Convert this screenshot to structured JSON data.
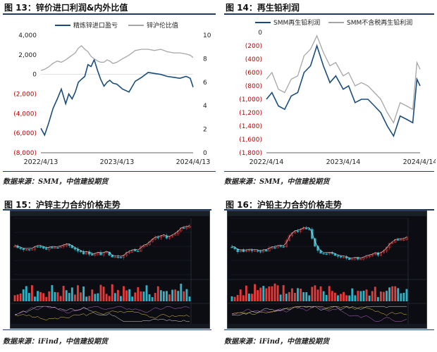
{
  "figures": [
    {
      "title": "图 13：锌价进口利润&内外比值",
      "source": "数据来源：SMM，中信建投期货"
    },
    {
      "title": "图 14：再生铅利润",
      "source": "数据来源：SMM，中信建投期货"
    },
    {
      "title": "图 15：沪锌主力合约价格走势",
      "source": "数据来源：iFind，中信建投期货"
    },
    {
      "title": "图 16：沪铅主力合约价格走势",
      "source": "数据来源：iFind，中信建投期货"
    }
  ],
  "colors": {
    "primary_series": "#1a4d7c",
    "secondary_series": "#a6a6a6",
    "negative_label": "#c00000",
    "rule": "#1f3a64",
    "candle_up": "#e33b3b",
    "candle_down": "#2bb5c7",
    "terminal_bg": "#0b0d12"
  },
  "chart_data": [
    {
      "type": "line",
      "title": "",
      "xlabel": "",
      "ylabel": "",
      "x_ticks": [
        "2022/4/13",
        "2023/4/13",
        "2024/4/13"
      ],
      "x_range": [
        "2022-04-13",
        "2024-04-13"
      ],
      "left_axis": {
        "ylim": [
          -8000,
          4000
        ],
        "ticks": [
          "4,000",
          "2,000",
          "0",
          "(2,000)",
          "(4,000)",
          "(6,000)",
          "(8,000)"
        ]
      },
      "right_axis": {
        "ylim": [
          0,
          10
        ],
        "ticks": [
          "10",
          "8",
          "6",
          "4",
          "2",
          "0"
        ]
      },
      "legend": "top",
      "series": [
        {
          "name": "精炼锌进口盈亏",
          "axis": "left",
          "x": [
            "2022-04-13",
            "2022-05-01",
            "2022-05-20",
            "2022-06-10",
            "2022-07-01",
            "2022-07-20",
            "2022-08-10",
            "2022-08-25",
            "2022-09-10",
            "2022-09-25",
            "2022-10-10",
            "2022-10-25",
            "2022-11-10",
            "2022-11-25",
            "2022-12-10",
            "2022-12-25",
            "2023-01-10",
            "2023-01-25",
            "2023-02-10",
            "2023-02-25",
            "2023-03-10",
            "2023-03-25",
            "2023-04-13",
            "2023-05-10",
            "2023-06-10",
            "2023-07-10",
            "2023-08-10",
            "2023-09-10",
            "2023-10-10",
            "2023-11-10",
            "2023-12-10",
            "2024-01-10",
            "2024-02-10",
            "2024-03-10",
            "2024-03-30",
            "2024-04-13"
          ],
          "values": [
            -5500,
            -6200,
            -5000,
            -3500,
            -2500,
            -1500,
            -3000,
            -2000,
            -2500,
            -1800,
            -800,
            -500,
            -200,
            1000,
            800,
            1500,
            400,
            -500,
            -1200,
            -800,
            -600,
            -900,
            -1000,
            -1500,
            -1800,
            -700,
            -300,
            200,
            100,
            0,
            -200,
            -300,
            -400,
            -200,
            -400,
            -1300
          ]
        },
        {
          "name": "锌沪伦比值",
          "axis": "right",
          "x": [
            "2022-04-13",
            "2022-05-01",
            "2022-05-20",
            "2022-06-10",
            "2022-07-01",
            "2022-07-20",
            "2022-08-10",
            "2022-08-25",
            "2022-09-10",
            "2022-09-25",
            "2022-10-10",
            "2022-10-25",
            "2022-11-10",
            "2022-11-25",
            "2022-12-10",
            "2022-12-25",
            "2023-01-10",
            "2023-01-25",
            "2023-02-10",
            "2023-02-25",
            "2023-03-10",
            "2023-03-25",
            "2023-04-13",
            "2023-05-10",
            "2023-06-10",
            "2023-07-10",
            "2023-08-10",
            "2023-09-10",
            "2023-10-10",
            "2023-11-10",
            "2023-12-10",
            "2024-01-10",
            "2024-02-10",
            "2024-03-10",
            "2024-03-30",
            "2024-04-13"
          ],
          "values": [
            7.0,
            7.1,
            7.3,
            7.6,
            7.8,
            7.7,
            7.9,
            8.1,
            8.3,
            8.5,
            8.9,
            9.1,
            8.8,
            8.6,
            8.2,
            8.0,
            7.8,
            7.7,
            7.7,
            7.9,
            7.8,
            7.6,
            7.7,
            8.0,
            8.3,
            8.7,
            8.8,
            8.8,
            8.7,
            8.8,
            8.6,
            8.5,
            8.5,
            8.4,
            8.3,
            8.1
          ]
        }
      ]
    },
    {
      "type": "line",
      "title": "",
      "xlabel": "",
      "ylabel": "",
      "x_ticks": [
        "2022/4/14",
        "2023/4/14",
        "2024/4/14"
      ],
      "x_range": [
        "2022-04-14",
        "2024-04-14"
      ],
      "left_axis": {
        "ylim": [
          -1800,
          0
        ],
        "ticks": [
          "0",
          "(200)",
          "(400)",
          "(600)",
          "(800)",
          "(1,000)",
          "(1,200)",
          "(1,400)",
          "(1,600)",
          "(1,800)"
        ]
      },
      "legend": "top",
      "series": [
        {
          "name": "SMM再生铅利润",
          "x": [
            "2022-04-14",
            "2022-05-10",
            "2022-06-10",
            "2022-07-10",
            "2022-08-10",
            "2022-09-10",
            "2022-10-10",
            "2022-11-10",
            "2022-12-10",
            "2023-01-10",
            "2023-02-10",
            "2023-03-10",
            "2023-04-14",
            "2023-05-10",
            "2023-06-10",
            "2023-07-10",
            "2023-08-10",
            "2023-09-10",
            "2023-10-10",
            "2023-11-10",
            "2023-12-10",
            "2024-01-10",
            "2024-02-10",
            "2024-03-10",
            "2024-03-30",
            "2024-04-14"
          ],
          "values": [
            -1000,
            -900,
            -1100,
            -1150,
            -950,
            -900,
            -600,
            -500,
            -200,
            -500,
            -750,
            -650,
            -850,
            -800,
            -1050,
            -1000,
            -1000,
            -1100,
            -1200,
            -1400,
            -1550,
            -1250,
            -1300,
            -1350,
            -700,
            -800
          ]
        },
        {
          "name": "SMM不含税再生铅利润",
          "x": [
            "2022-04-14",
            "2022-05-10",
            "2022-06-10",
            "2022-07-10",
            "2022-08-10",
            "2022-09-10",
            "2022-10-10",
            "2022-11-10",
            "2022-12-10",
            "2023-01-10",
            "2023-02-10",
            "2023-03-10",
            "2023-04-14",
            "2023-05-10",
            "2023-06-10",
            "2023-07-10",
            "2023-08-10",
            "2023-09-10",
            "2023-10-10",
            "2023-11-10",
            "2023-12-10",
            "2024-01-10",
            "2024-02-10",
            "2024-03-10",
            "2024-03-30",
            "2024-04-14"
          ],
          "values": [
            -700,
            -600,
            -850,
            -900,
            -700,
            -650,
            -350,
            -250,
            -50,
            -300,
            -500,
            -450,
            -650,
            -600,
            -800,
            -750,
            -800,
            -900,
            -1000,
            -1200,
            -1350,
            -1050,
            -1100,
            -1150,
            -450,
            -550
          ]
        }
      ]
    }
  ]
}
